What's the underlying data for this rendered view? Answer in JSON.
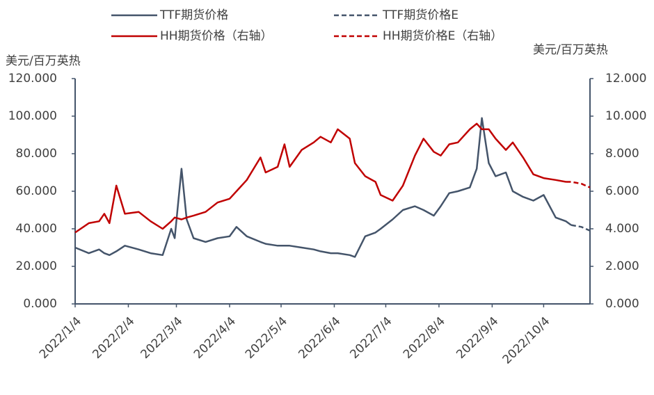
{
  "chart_data": {
    "type": "line",
    "y_label": "美元/百万英热",
    "y2_label": "美元/百万英热",
    "x": [
      "2022/1/4",
      "2022/1/12",
      "2022/1/18",
      "2022/1/21",
      "2022/1/24",
      "2022/1/28",
      "2022/2/2",
      "2022/2/10",
      "2022/2/17",
      "2022/2/24",
      "2022/3/1",
      "2022/3/3",
      "2022/3/7",
      "2022/3/10",
      "2022/3/14",
      "2022/3/21",
      "2022/3/28",
      "2022/4/4",
      "2022/4/8",
      "2022/4/14",
      "2022/4/22",
      "2022/4/25",
      "2022/5/2",
      "2022/5/6",
      "2022/5/9",
      "2022/5/16",
      "2022/5/23",
      "2022/5/27",
      "2022/6/2",
      "2022/6/6",
      "2022/6/13",
      "2022/6/16",
      "2022/6/22",
      "2022/6/28",
      "2022/7/1",
      "2022/7/8",
      "2022/7/14",
      "2022/7/21",
      "2022/7/26",
      "2022/8/1",
      "2022/8/5",
      "2022/8/10",
      "2022/8/15",
      "2022/8/22",
      "2022/8/26",
      "2022/8/29",
      "2022/9/2",
      "2022/9/6",
      "2022/9/12",
      "2022/9/16",
      "2022/9/22",
      "2022/9/28",
      "2022/10/4",
      "2022/10/11",
      "2022/10/17",
      "2022/10/20",
      "2022/10/26",
      "2022/10/31"
    ],
    "xlim": [
      "2022/1/4",
      "2022/10/31"
    ],
    "xticks": [
      "2022/1/4",
      "2022/2/4",
      "2022/3/4",
      "2022/4/4",
      "2022/5/4",
      "2022/6/4",
      "2022/7/4",
      "2022/8/4",
      "2022/9/4",
      "2022/10/4"
    ],
    "ylim": [
      0,
      120
    ],
    "yticks": [
      {
        "value": 0,
        "label": "0.000"
      },
      {
        "value": 20,
        "label": "20.000"
      },
      {
        "value": 40,
        "label": "40.000"
      },
      {
        "value": 60,
        "label": "60.000"
      },
      {
        "value": 80,
        "label": "80.000"
      },
      {
        "value": 100,
        "label": "100.000"
      },
      {
        "value": 120,
        "label": "120.000"
      }
    ],
    "y2lim": [
      0,
      12
    ],
    "y2ticks": [
      {
        "value": 0,
        "label": "0.000"
      },
      {
        "value": 2,
        "label": "2.000"
      },
      {
        "value": 4,
        "label": "4.000"
      },
      {
        "value": 6,
        "label": "6.000"
      },
      {
        "value": 8,
        "label": "8.000"
      },
      {
        "value": 10,
        "label": "10.000"
      },
      {
        "value": 12,
        "label": "12.000"
      }
    ],
    "series": [
      {
        "name": "TTF期货价格",
        "color": "#44546a",
        "style": "solid",
        "values": [
          30,
          27,
          29,
          27,
          26,
          28,
          31,
          29,
          27,
          26,
          40,
          35,
          72,
          45,
          35,
          33,
          35,
          36,
          41,
          36,
          33,
          32,
          31,
          31,
          31,
          30,
          29,
          28,
          27,
          27,
          26,
          25,
          36,
          38,
          40,
          45,
          50,
          52,
          50,
          47,
          52,
          59,
          60,
          62,
          72,
          99,
          75,
          68,
          70,
          60,
          57,
          55,
          58,
          46,
          44,
          42,
          null,
          null
        ]
      },
      {
        "name": "TTF期货价格E",
        "color": "#44546a",
        "style": "dashed",
        "values": [
          null,
          null,
          null,
          null,
          null,
          null,
          null,
          null,
          null,
          null,
          null,
          null,
          null,
          null,
          null,
          null,
          null,
          null,
          null,
          null,
          null,
          null,
          null,
          null,
          null,
          null,
          null,
          null,
          null,
          null,
          null,
          null,
          null,
          null,
          null,
          null,
          null,
          null,
          null,
          null,
          null,
          null,
          null,
          null,
          null,
          null,
          null,
          null,
          null,
          null,
          null,
          null,
          null,
          null,
          null,
          42,
          41,
          39
        ]
      },
      {
        "name": "HH期货价格（右轴）",
        "color": "#c00000",
        "style": "solid",
        "axis": "y2",
        "values": [
          3.8,
          4.3,
          4.4,
          4.8,
          4.3,
          6.3,
          4.8,
          4.9,
          4.4,
          4.0,
          4.4,
          4.6,
          4.5,
          4.6,
          4.7,
          4.9,
          5.4,
          5.6,
          6.0,
          6.6,
          7.8,
          7.0,
          7.3,
          8.5,
          7.3,
          8.2,
          8.6,
          8.9,
          8.6,
          9.3,
          8.8,
          7.5,
          6.8,
          6.5,
          5.8,
          5.5,
          6.3,
          7.9,
          8.8,
          8.1,
          7.9,
          8.5,
          8.6,
          9.3,
          9.6,
          9.3,
          9.3,
          8.8,
          8.2,
          8.6,
          7.8,
          6.9,
          6.7,
          6.6,
          6.5,
          null,
          null,
          null
        ]
      },
      {
        "name": "HH期货价格E（右轴）",
        "color": "#c00000",
        "style": "dashed",
        "axis": "y2",
        "values": [
          null,
          null,
          null,
          null,
          null,
          null,
          null,
          null,
          null,
          null,
          null,
          null,
          null,
          null,
          null,
          null,
          null,
          null,
          null,
          null,
          null,
          null,
          null,
          null,
          null,
          null,
          null,
          null,
          null,
          null,
          null,
          null,
          null,
          null,
          null,
          null,
          null,
          null,
          null,
          null,
          null,
          null,
          null,
          null,
          null,
          null,
          null,
          null,
          null,
          null,
          null,
          null,
          null,
          null,
          6.5,
          6.5,
          6.4,
          6.2
        ]
      }
    ]
  }
}
